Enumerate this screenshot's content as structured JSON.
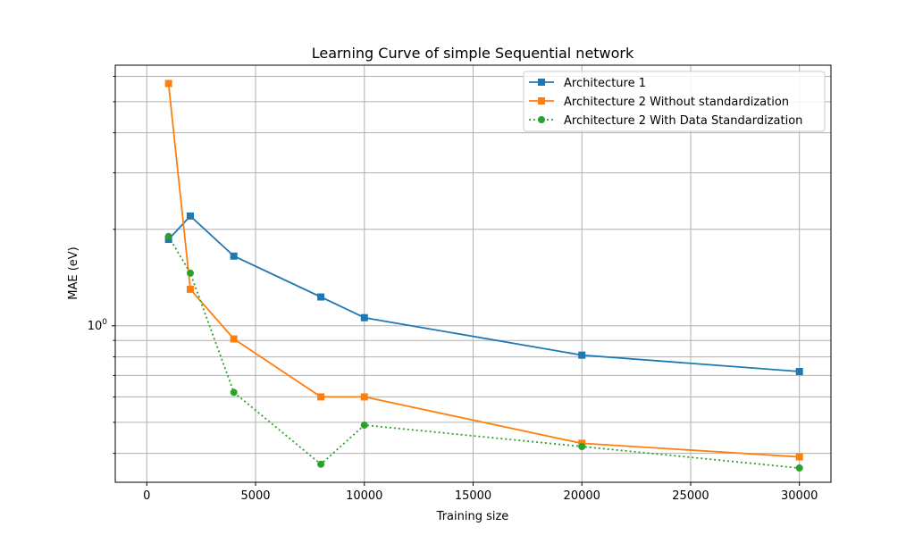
{
  "chart_data": {
    "type": "line",
    "title": "Learning Curve of simple Sequential network",
    "xlabel": "Training size",
    "ylabel": "MAE (eV)",
    "xlim": [
      -1450,
      31450
    ],
    "ylim": [
      0.325,
      6.5
    ],
    "yscale": "log",
    "grid": true,
    "legend_position": "top-right",
    "x_ticks": [
      0,
      5000,
      10000,
      15000,
      20000,
      25000,
      30000
    ],
    "x_tick_labels": [
      "0",
      "5000",
      "10000",
      "15000",
      "20000",
      "25000",
      "30000"
    ],
    "y_major_ticks": [
      1
    ],
    "y_major_tick_labels": [
      "10",
      "0"
    ],
    "y_minor_ticks": [
      0.4,
      0.5,
      0.6,
      0.7,
      0.8,
      0.9,
      2,
      3,
      4,
      5,
      6
    ],
    "series": [
      {
        "name": "Architecture 1",
        "color": "#1f77b4",
        "marker": "square",
        "linestyle": "solid",
        "x": [
          1000,
          2000,
          4000,
          8000,
          10000,
          20000,
          30000
        ],
        "y": [
          1.86,
          2.2,
          1.65,
          1.23,
          1.06,
          0.81,
          0.72
        ]
      },
      {
        "name": "Architecture 2 Without standardization",
        "color": "#ff7f0e",
        "marker": "square",
        "linestyle": "solid",
        "x": [
          1000,
          2000,
          4000,
          8000,
          10000,
          20000,
          30000
        ],
        "y": [
          5.7,
          1.3,
          0.91,
          0.6,
          0.6,
          0.43,
          0.39
        ]
      },
      {
        "name": "Architecture 2 With Data Standardization",
        "color": "#2ca02c",
        "marker": "circle",
        "linestyle": "dotted",
        "x": [
          1000,
          2000,
          4000,
          8000,
          10000,
          20000,
          30000
        ],
        "y": [
          1.9,
          1.46,
          0.62,
          0.37,
          0.49,
          0.42,
          0.36
        ]
      }
    ]
  }
}
